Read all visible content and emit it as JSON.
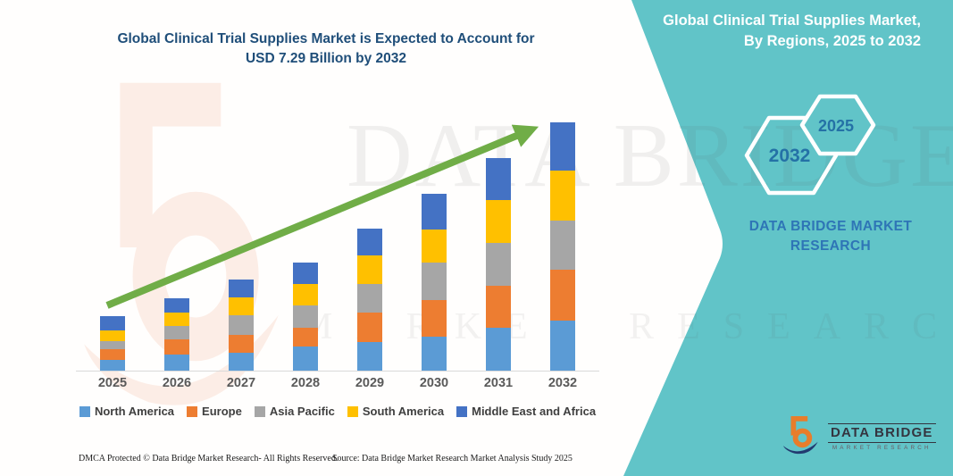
{
  "colors": {
    "teal_panel": "#61C4C8",
    "arrow_green": "#70AD47",
    "title_blue": "#1F4E79",
    "panel_text_blue": "#2E75B6",
    "hexagon_year_blue": "#2471A6",
    "axis_label_gray": "#595959",
    "logo_orange": "#E87D2B",
    "logo_navy": "#223A70"
  },
  "header": {
    "title_line1": "Global Clinical Trial Supplies Market is Expected to Account for",
    "title_line2": "USD 7.29 Billion by 2032"
  },
  "chart_data": {
    "type": "bar",
    "stacked": true,
    "title": "Global Clinical Trial Supplies Market is Expected to Account for USD 7.29 Billion by 2032",
    "unit": "USD Billion",
    "categories": [
      "2025",
      "2026",
      "2027",
      "2028",
      "2029",
      "2030",
      "2031",
      "2032"
    ],
    "series": [
      {
        "name": "North America",
        "color": "#5B9BD5",
        "values": [
          0.31,
          0.47,
          0.52,
          0.71,
          0.84,
          1.0,
          1.26,
          1.47
        ]
      },
      {
        "name": "Europe",
        "color": "#ED7D31",
        "values": [
          0.31,
          0.45,
          0.52,
          0.55,
          0.87,
          1.08,
          1.23,
          1.49
        ]
      },
      {
        "name": "Asia Pacific",
        "color": "#A6A6A6",
        "values": [
          0.26,
          0.39,
          0.6,
          0.66,
          0.84,
          1.1,
          1.26,
          1.44
        ]
      },
      {
        "name": "South America",
        "color": "#FFC000",
        "values": [
          0.31,
          0.39,
          0.5,
          0.63,
          0.84,
          0.97,
          1.26,
          1.47
        ]
      },
      {
        "name": "Middle East and Africa",
        "color": "#4472C4",
        "values": [
          0.42,
          0.42,
          0.53,
          0.62,
          0.78,
          1.05,
          1.23,
          1.42
        ]
      }
    ],
    "totals": [
      1.61,
      2.12,
      2.67,
      3.17,
      4.17,
      5.2,
      6.24,
      7.29
    ],
    "trend_arrow": true,
    "legend_position": "bottom",
    "grid": false
  },
  "side_panel": {
    "title_line1": "Global Clinical Trial Supplies Market,",
    "title_line2": "By Regions, 2025 to 2032",
    "hexagons": [
      {
        "label": "2032"
      },
      {
        "label": "2025"
      }
    ],
    "brand_line1": "DATA BRIDGE MARKET",
    "brand_line2": "RESEARCH"
  },
  "watermark": {
    "brand": "DATA BRIDGE",
    "sub": "MARKET RESEARCH"
  },
  "logo": {
    "name_line": "DATA BRIDGE",
    "sub_line": "MARKET RESEARCH"
  },
  "footer": {
    "left": "DMCA Protected © Data Bridge Market Research-  All Rights Reserved.",
    "right": "Source: Data Bridge Market Research  Market Analysis Study 2025"
  }
}
